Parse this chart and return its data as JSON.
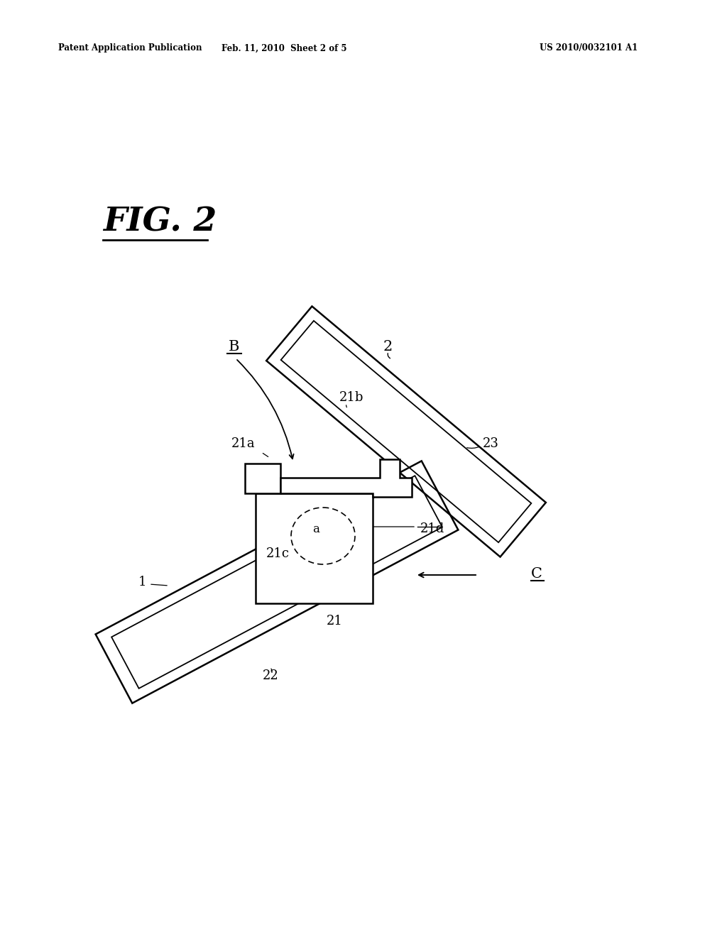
{
  "bg_color": "#ffffff",
  "header_left": "Patent Application Publication",
  "header_center": "Feb. 11, 2010  Sheet 2 of 5",
  "header_right": "US 2010/0032101 A1",
  "fig_label": "FIG. 2",
  "line_color": "#000000"
}
